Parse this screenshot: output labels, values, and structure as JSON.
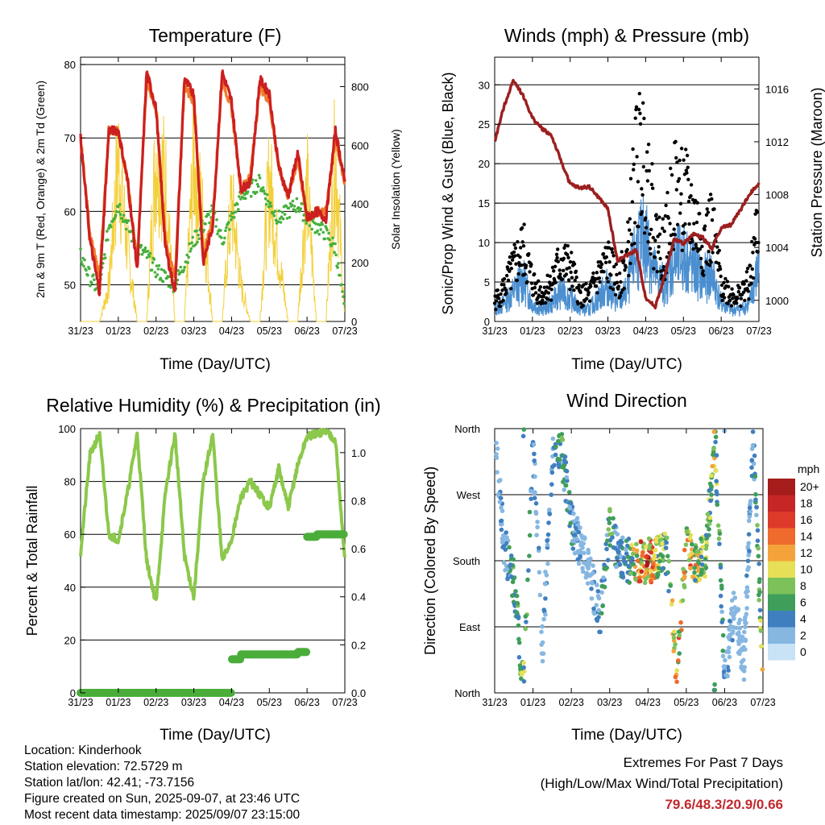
{
  "time_ticks": [
    "31/23",
    "01/23",
    "02/23",
    "03/23",
    "04/23",
    "05/23",
    "06/23",
    "07/23"
  ],
  "colors": {
    "temp_2m": "#cc1f1f",
    "temp_9m": "#f07a2a",
    "dewpoint": "#46b03c",
    "insolation": "#f3cf3a",
    "prop_wind": "#4b8fd0",
    "gust": "#000000",
    "pressure": "#9c1f1f",
    "rh": "#8bc84b",
    "rain": "#4aad3a"
  },
  "footer": {
    "location": "Location: Kinderhook",
    "elevation": "Station elevation: 72.5729 m",
    "latlon": "Station lat/lon: 42.41; -73.7156",
    "created": "Figure created on Sun, 2025-09-07, at 23:46 UTC",
    "recent": "Most recent data timestamp: 2025/09/07 23:15:00"
  },
  "extremes": {
    "title": "Extremes For Past 7 Days",
    "subtitle": "(High/Low/Max Wind/Total Precipitation)",
    "values": "79.6/48.3/20.9/0.66"
  },
  "chart_data": [
    {
      "type": "line",
      "title": "Temperature (F)",
      "xlabel": "Time (Day/UTC)",
      "ylabel": "2m & 9m T (Red, Orange) & 2m Td (Green)",
      "ylabel_right": "Solar Insolation (Yellow)",
      "ylim": [
        45,
        81
      ],
      "yticks": [
        50,
        60,
        70,
        80
      ],
      "ylim_right": [
        0,
        900
      ],
      "yticks_right": [
        0,
        200,
        400,
        600,
        800
      ],
      "x": [
        0,
        0.25,
        0.5,
        0.75,
        1,
        1.25,
        1.5,
        1.75,
        2,
        2.25,
        2.5,
        2.75,
        3,
        3.25,
        3.5,
        3.75,
        4,
        4.25,
        4.5,
        4.75,
        5,
        5.25,
        5.5,
        5.75,
        6,
        6.25,
        6.5,
        6.75,
        7
      ],
      "series": [
        {
          "name": "2m T",
          "values": [
            70,
            56,
            49,
            71,
            71,
            64,
            52,
            79,
            74,
            55,
            49,
            78,
            76,
            53,
            58,
            79,
            75,
            63,
            64,
            78,
            76,
            66,
            62,
            68,
            59,
            60,
            59,
            71,
            64
          ]
        },
        {
          "name": "9m T",
          "values": [
            70,
            57,
            51,
            71,
            71,
            64,
            53,
            78,
            74,
            56,
            51,
            77,
            75,
            54,
            59,
            78,
            74,
            63,
            65,
            77,
            75,
            66,
            62,
            67,
            59,
            60,
            60,
            70,
            64
          ]
        },
        {
          "name": "2m Td",
          "values": [
            54,
            51,
            49,
            58,
            61,
            58,
            55,
            54,
            52,
            51,
            50,
            53,
            56,
            58,
            60,
            56,
            59,
            62,
            63,
            64,
            61,
            59,
            60,
            61,
            59,
            58,
            57,
            55,
            46
          ]
        },
        {
          "name": "Solar Insolation",
          "values": [
            0,
            0,
            0,
            180,
            820,
            350,
            0,
            0,
            860,
            700,
            0,
            0,
            810,
            500,
            0,
            0,
            600,
            180,
            0,
            0,
            720,
            320,
            0,
            0,
            680,
            0,
            0,
            860,
            0
          ]
        }
      ]
    },
    {
      "type": "line",
      "title": "Winds (mph) & Pressure (mb)",
      "xlabel": "Time (Day/UTC)",
      "ylabel": "Sonic/Prop Wind & Gust (Blue, Black)",
      "ylabel_right": "Station Pressure (Maroon)",
      "ylim": [
        0,
        33.5
      ],
      "yticks": [
        0,
        5,
        10,
        15,
        20,
        25,
        30
      ],
      "ylim_right": [
        998.4,
        1018.4
      ],
      "yticks_right": [
        1000,
        1004,
        1008,
        1012,
        1016
      ],
      "x": [
        0,
        0.25,
        0.5,
        0.75,
        1,
        1.25,
        1.5,
        1.75,
        2,
        2.25,
        2.5,
        2.75,
        3,
        3.25,
        3.5,
        3.75,
        4,
        4.25,
        4.5,
        4.75,
        5,
        5.25,
        5.5,
        5.75,
        6,
        6.25,
        6.5,
        6.75,
        7
      ],
      "series": [
        {
          "name": "Prop Wind",
          "values": [
            2,
            3,
            5,
            7,
            3,
            2,
            3,
            5,
            4,
            2,
            2,
            4,
            6,
            3,
            5,
            12,
            14,
            8,
            6,
            10,
            11,
            9,
            7,
            8,
            3,
            2,
            2,
            3,
            9
          ]
        },
        {
          "name": "Gust",
          "values": [
            3,
            5,
            8,
            11,
            6,
            4,
            6,
            9,
            8,
            4,
            4,
            7,
            9,
            6,
            9,
            24,
            25,
            13,
            11,
            20,
            19,
            16,
            12,
            14,
            6,
            4,
            4,
            6,
            16
          ]
        },
        {
          "name": "Station Pressure",
          "values": [
            1012,
            1014.7,
            1016.7,
            1015.5,
            1013.8,
            1013.0,
            1012.5,
            1010.6,
            1008.8,
            1008.5,
            1008.6,
            1007.8,
            1006.9,
            1003.0,
            1003.4,
            1003.8,
            1000.2,
            999.5,
            1001.8,
            1004.6,
            1004.3,
            1005.0,
            1004.8,
            1003.9,
            1005.5,
            1005.7,
            1006.8,
            1008.0,
            1008.9
          ]
        }
      ]
    },
    {
      "type": "line",
      "title": "Relative Humidity (%) & Precipitation (in)",
      "xlabel": "Time (Day/UTC)",
      "ylabel": "Percent & Total Rainfall",
      "ylim": [
        0,
        100
      ],
      "yticks": [
        0,
        20,
        40,
        60,
        80,
        100
      ],
      "ylim_right": [
        0,
        1.1
      ],
      "yticks_right": [
        0.0,
        0.2,
        0.4,
        0.6,
        0.8,
        1.0
      ],
      "x": [
        0,
        0.25,
        0.5,
        0.75,
        1,
        1.25,
        1.5,
        1.75,
        2,
        2.25,
        2.5,
        2.75,
        3,
        3.25,
        3.5,
        3.75,
        4,
        4.25,
        4.5,
        4.75,
        5,
        5.25,
        5.5,
        5.75,
        6,
        6.25,
        6.5,
        6.75,
        7
      ],
      "series": [
        {
          "name": "Relative Humidity",
          "values": [
            53,
            90,
            98,
            60,
            58,
            76,
            98,
            50,
            34,
            76,
            98,
            52,
            36,
            80,
            98,
            50,
            58,
            74,
            80,
            75,
            70,
            85,
            70,
            86,
            97,
            98,
            99,
            96,
            50
          ]
        },
        {
          "name": "Total Rainfall",
          "values": [
            0,
            0,
            0,
            0,
            0,
            0,
            0,
            0,
            0,
            0,
            0,
            0,
            0,
            0,
            0,
            0,
            0.14,
            0.16,
            0.16,
            0.16,
            0.16,
            0.16,
            0.16,
            0.17,
            0.65,
            0.66,
            0.66,
            0.66,
            0.66
          ]
        }
      ]
    },
    {
      "type": "scatter",
      "title": "Wind Direction",
      "xlabel": "Time (Day/UTC)",
      "ylabel": "Direction (Colored By Speed)",
      "yticks": [
        "North",
        "West",
        "South",
        "East",
        "North"
      ],
      "legend_title": "mph",
      "legend_labels": [
        "20+",
        "18",
        "16",
        "14",
        "12",
        "10",
        "8",
        "6",
        "4",
        "2",
        "0"
      ],
      "legend_colors": [
        "#a51c1c",
        "#c62626",
        "#de3a2a",
        "#ef6a2d",
        "#f4a33a",
        "#e6df57",
        "#7cc15a",
        "#3f9e5a",
        "#3f7fc0",
        "#86b7e1",
        "#c7e3f5"
      ],
      "x": [
        0,
        0.25,
        0.5,
        0.75,
        1,
        1.25,
        1.5,
        1.75,
        2,
        2.25,
        2.5,
        2.75,
        3,
        3.25,
        3.5,
        3.75,
        4,
        4.25,
        4.5,
        4.75,
        5,
        5.25,
        5.5,
        5.75,
        6,
        6.25,
        6.5,
        6.75,
        7
      ],
      "direction_deg": [
        350,
        200,
        150,
        10,
        340,
        60,
        320,
        330,
        230,
        200,
        160,
        100,
        230,
        185,
        180,
        178,
        180,
        182,
        190,
        30,
        195,
        180,
        185,
        350,
        20,
        120,
        40,
        345,
        20
      ],
      "speed": [
        2,
        3,
        5,
        7,
        3,
        2,
        3,
        5,
        4,
        2,
        2,
        4,
        6,
        3,
        5,
        12,
        14,
        8,
        6,
        10,
        11,
        9,
        7,
        8,
        3,
        2,
        2,
        3,
        9
      ]
    }
  ]
}
